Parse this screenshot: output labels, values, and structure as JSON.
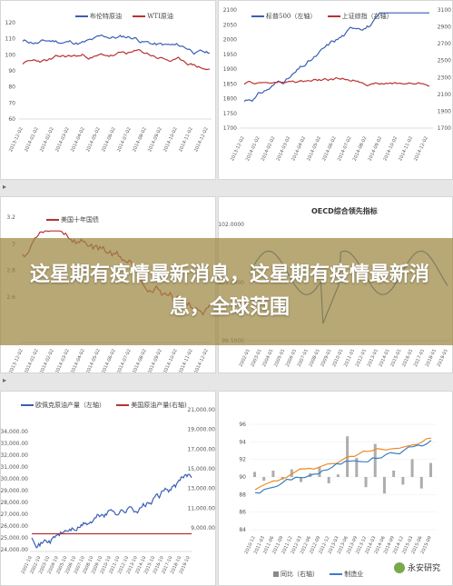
{
  "banner": {
    "text": "这星期有疫情最新消息，这星期有疫情最新消息，全球范围"
  },
  "watermark": {
    "text": "永安研究"
  },
  "panels": {
    "p1": {
      "legend": [
        "布伦特原油",
        "WTI原油"
      ],
      "colors": [
        "#3a5fb5",
        "#b83232"
      ],
      "yticks": [
        "120",
        "110",
        "100",
        "90",
        "80",
        "70",
        "60"
      ],
      "xticks": [
        "2013-12-02",
        "2014-01-02",
        "2014-02-02",
        "2014-03-02",
        "2014-04-02",
        "2014-05-02",
        "2014-06-02",
        "2014-07-02",
        "2014-08-02",
        "2014-09-02",
        "2014-10-02",
        "2014-11-02",
        "2014-12-02"
      ]
    },
    "p2": {
      "legend": [
        "标普500（左轴）",
        "上证综指（右轴）"
      ],
      "colors": [
        "#3a5fb5",
        "#b83232"
      ],
      "yticks_left": [
        "2100",
        "2050",
        "2000",
        "1950",
        "1900",
        "1850",
        "1800",
        "1750",
        "1700"
      ],
      "yticks_right": [
        "3100",
        "2900",
        "2700",
        "2500",
        "2300",
        "2100",
        "1900",
        "1700"
      ],
      "xticks": [
        "2013-12-02",
        "2014-01-02",
        "2014-02-02",
        "2014-03-02",
        "2014-04-02",
        "2014-05-02",
        "2014-06-02",
        "2014-07-02",
        "2014-08-02",
        "2014-09-02",
        "2014-10-02",
        "2014-11-02",
        "2014-12-02"
      ]
    },
    "p3": {
      "legend": [
        "美国十年国债"
      ],
      "colors": [
        "#b83232"
      ],
      "yticks": [
        "3.2",
        "3",
        "2.8",
        "2.6"
      ],
      "xticks": [
        "2013-12-02",
        "2014-01-02",
        "2014-02-02",
        "2014-03-02",
        "2014-04-02",
        "2014-05-02",
        "2014-06-02",
        "2014-07-02",
        "2014-08-02",
        "2014-09-02",
        "2014-10-02",
        "2014-11-02",
        "2014-12-02"
      ]
    },
    "p4": {
      "title": "OECD综合领先指标",
      "colors": [
        "#3a5fb5"
      ],
      "yticks": [
        "102.0000",
        "101.0000",
        "99.5000"
      ],
      "xticks": [
        "2002-01",
        "2003-01",
        "2004-01",
        "2005-01",
        "2006-01",
        "2007-01",
        "2008-01",
        "2009-01",
        "2010-01",
        "2011-01",
        "2012-01",
        "2013-01",
        "2014-01",
        "2015-01",
        "2016-01",
        "2017-01",
        "2018-01",
        "2019-01"
      ]
    },
    "p5": {
      "legend": [
        "欧佩克原油产量（左轴）",
        "美国原油产量(右轴)"
      ],
      "colors": [
        "#3a5fb5",
        "#b83232"
      ],
      "yticks_left": [
        "34,000.00",
        "33,000.00",
        "32,000.00",
        "31,000.00",
        "30,000.00",
        "29,000.00",
        "28,000.00",
        "27,000.00",
        "26,000.00",
        "25,000.00",
        "24,000.00"
      ],
      "yticks_right": [
        "21,000.00",
        "19,000.00",
        "17,000.00",
        "15,000.00",
        "13,000.00",
        "11,000.00",
        "9,000.00"
      ],
      "xticks": [
        "2001-10",
        "2002-10",
        "2003-10",
        "2004-10",
        "2005-10",
        "2006-10",
        "2007-10",
        "2008-10",
        "2009-10",
        "2010-10",
        "2011-10",
        "2012-10",
        "2013-10",
        "2014-10",
        "2015-10",
        "2016-10",
        "2017-10",
        "2018-10",
        "2019-10"
      ]
    },
    "p6": {
      "legend": [
        "同比（右轴）",
        "制造业"
      ],
      "colors": [
        "#8a8a8a",
        "#ee8a25",
        "#3a7fc4"
      ],
      "yticks": [
        "96",
        "94",
        "92",
        "90",
        "88",
        "86",
        "84"
      ],
      "xticks": [
        "2010-12",
        "2011-03",
        "2011-06",
        "2011-09",
        "2011-12",
        "2012-03",
        "2012-06",
        "2012-09",
        "2012-12",
        "2013-03",
        "2013-06",
        "2013-09",
        "2013-12",
        "2014-03",
        "2014-06",
        "2014-09",
        "2014-12",
        "2015-03",
        "2015-06",
        "2015-09"
      ]
    }
  }
}
